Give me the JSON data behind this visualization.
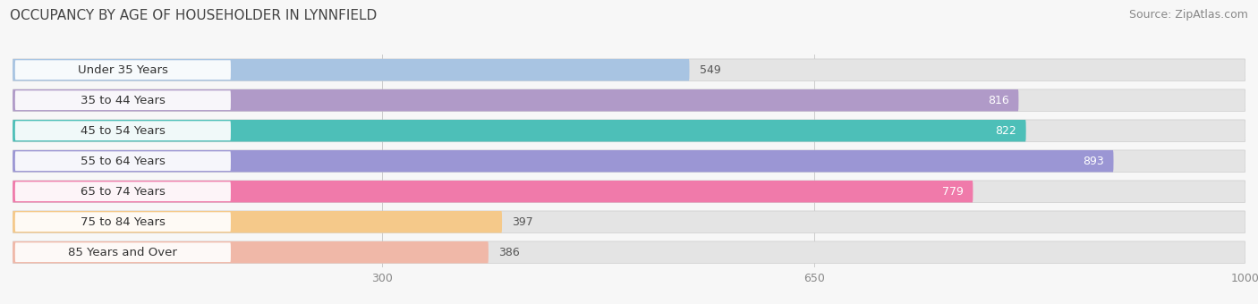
{
  "title": "OCCUPANCY BY AGE OF HOUSEHOLDER IN LYNNFIELD",
  "source": "Source: ZipAtlas.com",
  "categories": [
    "Under 35 Years",
    "35 to 44 Years",
    "45 to 54 Years",
    "55 to 64 Years",
    "65 to 74 Years",
    "75 to 84 Years",
    "85 Years and Over"
  ],
  "values": [
    549,
    816,
    822,
    893,
    779,
    397,
    386
  ],
  "bar_colors": [
    "#a8c4e2",
    "#b09ac8",
    "#4dbfb8",
    "#9b96d4",
    "#f07aaa",
    "#f5c98a",
    "#f0b8a8"
  ],
  "label_pill_colors": [
    "#e8f0f8",
    "#e8e0f4",
    "#d0f0ee",
    "#e0dff4",
    "#fce0ec",
    "#fce8d0",
    "#f8e0d8"
  ],
  "xlim": [
    0,
    1000
  ],
  "xticks": [
    300,
    650,
    1000
  ],
  "background_color": "#f7f7f7",
  "bar_bg_color": "#e4e4e4",
  "title_fontsize": 11,
  "source_fontsize": 9,
  "label_fontsize": 9.5,
  "value_fontsize": 9,
  "bar_height": 0.72,
  "figsize": [
    14.06,
    3.4
  ],
  "dpi": 100
}
